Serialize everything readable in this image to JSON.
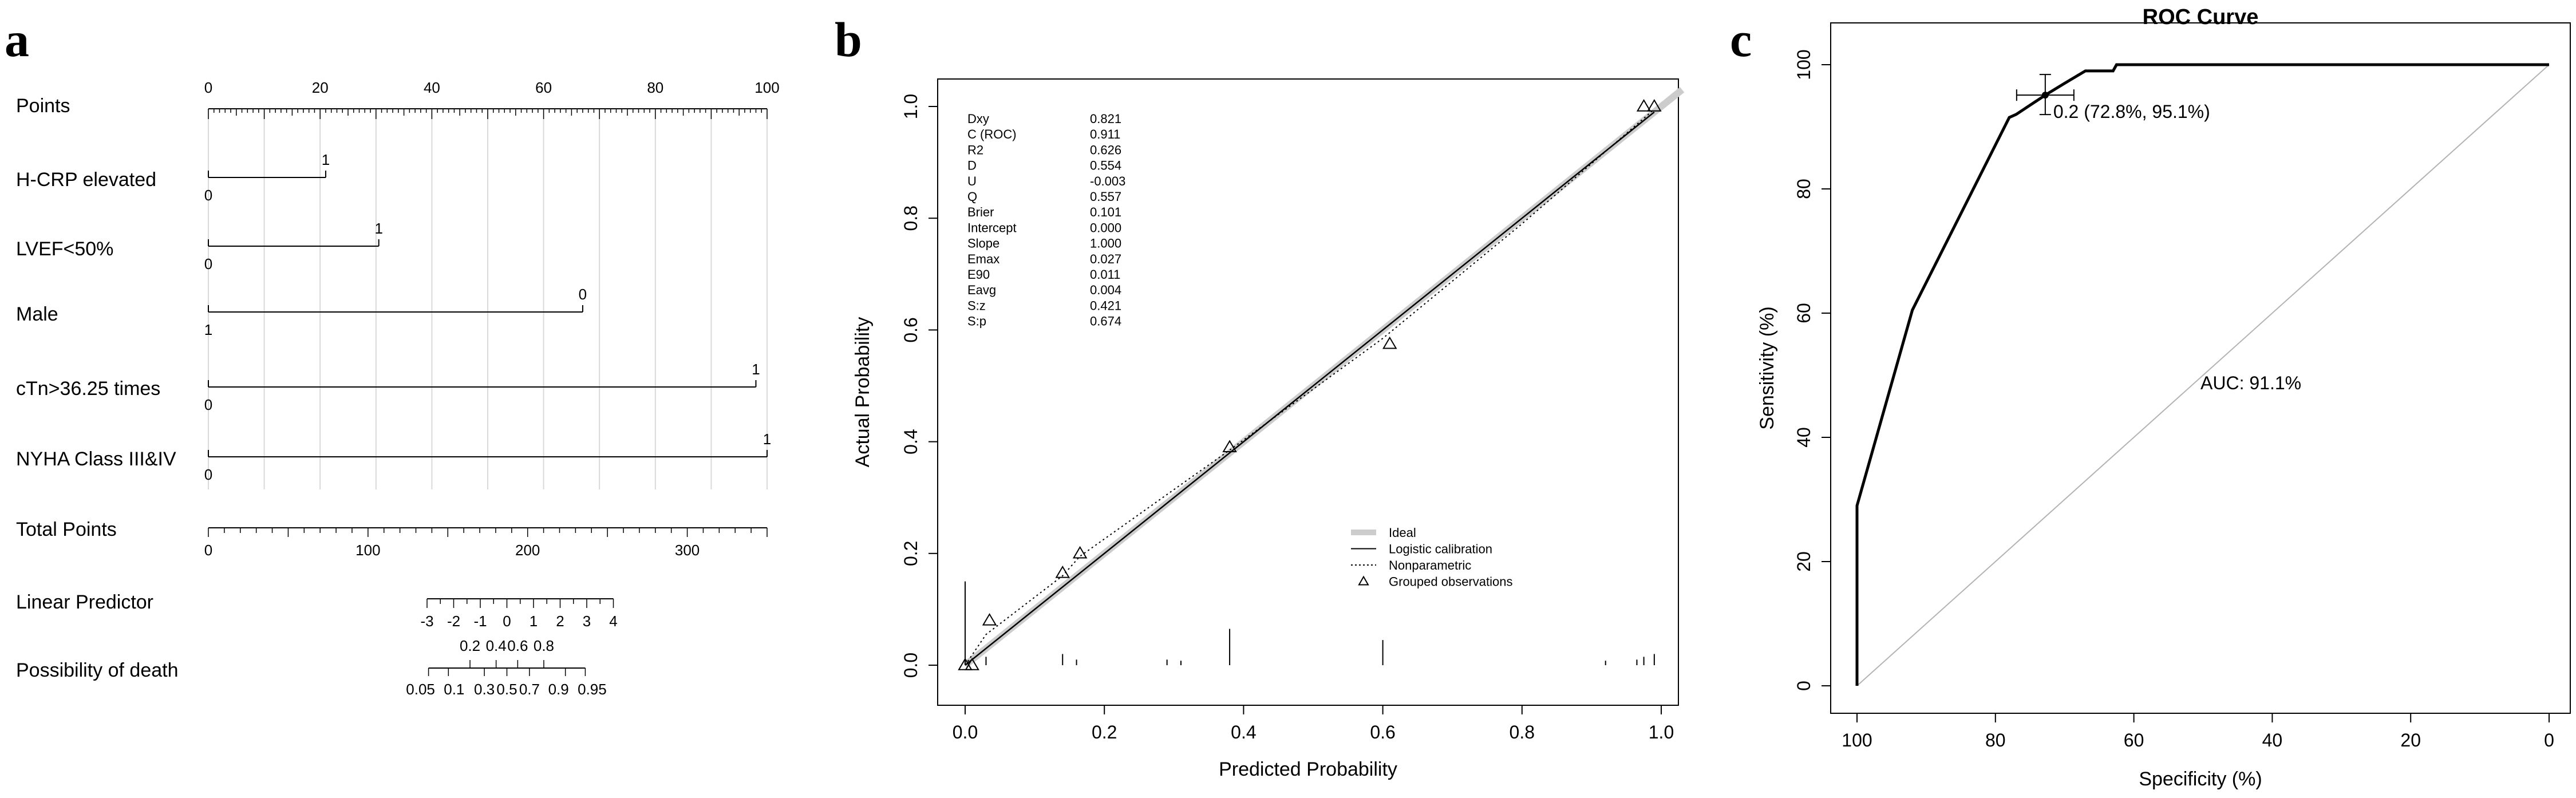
{
  "panel_labels": [
    "a",
    "b",
    "c"
  ],
  "chart_data": [
    {
      "type": "nomogram",
      "panel": "a",
      "points_axis": {
        "label": "Points",
        "ticks": [
          "0",
          "20",
          "40",
          "60",
          "80",
          "100"
        ],
        "range": [
          0,
          100
        ]
      },
      "variables": [
        {
          "label": "H-CRP elevated",
          "levels": [
            "0",
            "1"
          ],
          "points": [
            0,
            21
          ]
        },
        {
          "label": "LVEF<50%",
          "levels": [
            "0",
            "1"
          ],
          "points": [
            0,
            30.5
          ]
        },
        {
          "label": "Male",
          "levels": [
            "1",
            "0"
          ],
          "points": [
            0,
            67
          ]
        },
        {
          "label": "cTn>36.25 times",
          "levels": [
            "0",
            "1"
          ],
          "points": [
            0,
            98
          ]
        },
        {
          "label": "NYHA Class III&IV",
          "levels": [
            "0",
            "1"
          ],
          "points": [
            0,
            100
          ]
        }
      ],
      "total_points": {
        "label": "Total Points",
        "ticks": [
          "0",
          "100",
          "200",
          "300"
        ],
        "range": [
          0,
          350
        ]
      },
      "linear_predictor": {
        "label": "Linear Predictor",
        "ticks": [
          "-3",
          "-2",
          "-1",
          "0",
          "1",
          "2",
          "3",
          "4"
        ]
      },
      "possibility_of_death": {
        "label": "Possibility of death",
        "ticks_upper": [
          "0.2",
          "0.4",
          "0.6",
          "0.8"
        ],
        "ticks_lower": [
          "0.05",
          "0.1",
          "0.3",
          "0.5",
          "0.7",
          "0.9",
          "0.95"
        ]
      }
    },
    {
      "type": "line",
      "panel": "b",
      "xlabel": "Predicted Probability",
      "ylabel": "Actual Probability",
      "xlim": [
        0,
        1
      ],
      "ylim": [
        0,
        1
      ],
      "x_ticks": [
        "0.0",
        "0.2",
        "0.4",
        "0.6",
        "0.8",
        "1.0"
      ],
      "y_ticks": [
        "0.0",
        "0.2",
        "0.4",
        "0.6",
        "0.8",
        "1.0"
      ],
      "stats": [
        {
          "name": "Dxy",
          "value": "0.821"
        },
        {
          "name": "C (ROC)",
          "value": "0.911"
        },
        {
          "name": "R2",
          "value": "0.626"
        },
        {
          "name": "D",
          "value": "0.554"
        },
        {
          "name": "U",
          "value": "-0.003"
        },
        {
          "name": "Q",
          "value": "0.557"
        },
        {
          "name": "Brier",
          "value": "0.101"
        },
        {
          "name": "Intercept",
          "value": "0.000"
        },
        {
          "name": "Slope",
          "value": "1.000"
        },
        {
          "name": "Emax",
          "value": "0.027"
        },
        {
          "name": "E90",
          "value": "0.011"
        },
        {
          "name": "Eavg",
          "value": "0.004"
        },
        {
          "name": "S:z",
          "value": "0.421"
        },
        {
          "name": "S:p",
          "value": "0.674"
        }
      ],
      "legend": [
        "Ideal",
        "Logistic calibration",
        "Nonparametric",
        "Grouped observations"
      ],
      "legend_position": "bottom-right",
      "grouped_observations": [
        {
          "x": 0.0,
          "y": 0.0
        },
        {
          "x": 0.01,
          "y": 0.0
        },
        {
          "x": 0.035,
          "y": 0.08
        },
        {
          "x": 0.14,
          "y": 0.165
        },
        {
          "x": 0.165,
          "y": 0.2
        },
        {
          "x": 0.38,
          "y": 0.39
        },
        {
          "x": 0.61,
          "y": 0.575
        },
        {
          "x": 0.975,
          "y": 1.0
        },
        {
          "x": 0.99,
          "y": 1.0
        }
      ],
      "nonparametric": [
        [
          0,
          0
        ],
        [
          0.03,
          0.055
        ],
        [
          0.14,
          0.16
        ],
        [
          0.165,
          0.195
        ],
        [
          0.38,
          0.385
        ],
        [
          0.6,
          0.585
        ],
        [
          0.8,
          0.79
        ],
        [
          0.99,
          0.995
        ]
      ],
      "rug_ticks": [
        {
          "x": 0.0,
          "h": 0.15
        },
        {
          "x": 0.03,
          "h": 0.015
        },
        {
          "x": 0.14,
          "h": 0.02
        },
        {
          "x": 0.16,
          "h": 0.01
        },
        {
          "x": 0.29,
          "h": 0.01
        },
        {
          "x": 0.31,
          "h": 0.008
        },
        {
          "x": 0.38,
          "h": 0.065
        },
        {
          "x": 0.6,
          "h": 0.045
        },
        {
          "x": 0.92,
          "h": 0.008
        },
        {
          "x": 0.965,
          "h": 0.01
        },
        {
          "x": 0.975,
          "h": 0.015
        },
        {
          "x": 0.99,
          "h": 0.02
        }
      ]
    },
    {
      "type": "line",
      "panel": "c",
      "title": "ROC Curve",
      "xlabel": "Specificity (%)",
      "ylabel": "Sensitivity (%)",
      "xlim": [
        100,
        0
      ],
      "ylim": [
        0,
        100
      ],
      "x_ticks": [
        "100",
        "80",
        "60",
        "40",
        "20",
        "0"
      ],
      "y_ticks": [
        "0",
        "20",
        "40",
        "60",
        "80",
        "100"
      ],
      "series": [
        {
          "type": "roc",
          "points": [
            [
              100,
              0
            ],
            [
              100,
              29
            ],
            [
              92,
              60.5
            ],
            [
              78,
              91.5
            ],
            [
              77,
              92
            ],
            [
              72.8,
              95.1
            ],
            [
              70,
              97
            ],
            [
              67,
              99
            ],
            [
              63,
              99
            ],
            [
              62.5,
              100
            ],
            [
              0,
              100
            ]
          ]
        }
      ],
      "threshold_point": {
        "specificity": 72.8,
        "sensitivity": 95.1,
        "label": "0.2 (72.8%, 95.1%)"
      },
      "auc_label": "AUC: 91.1%"
    }
  ]
}
